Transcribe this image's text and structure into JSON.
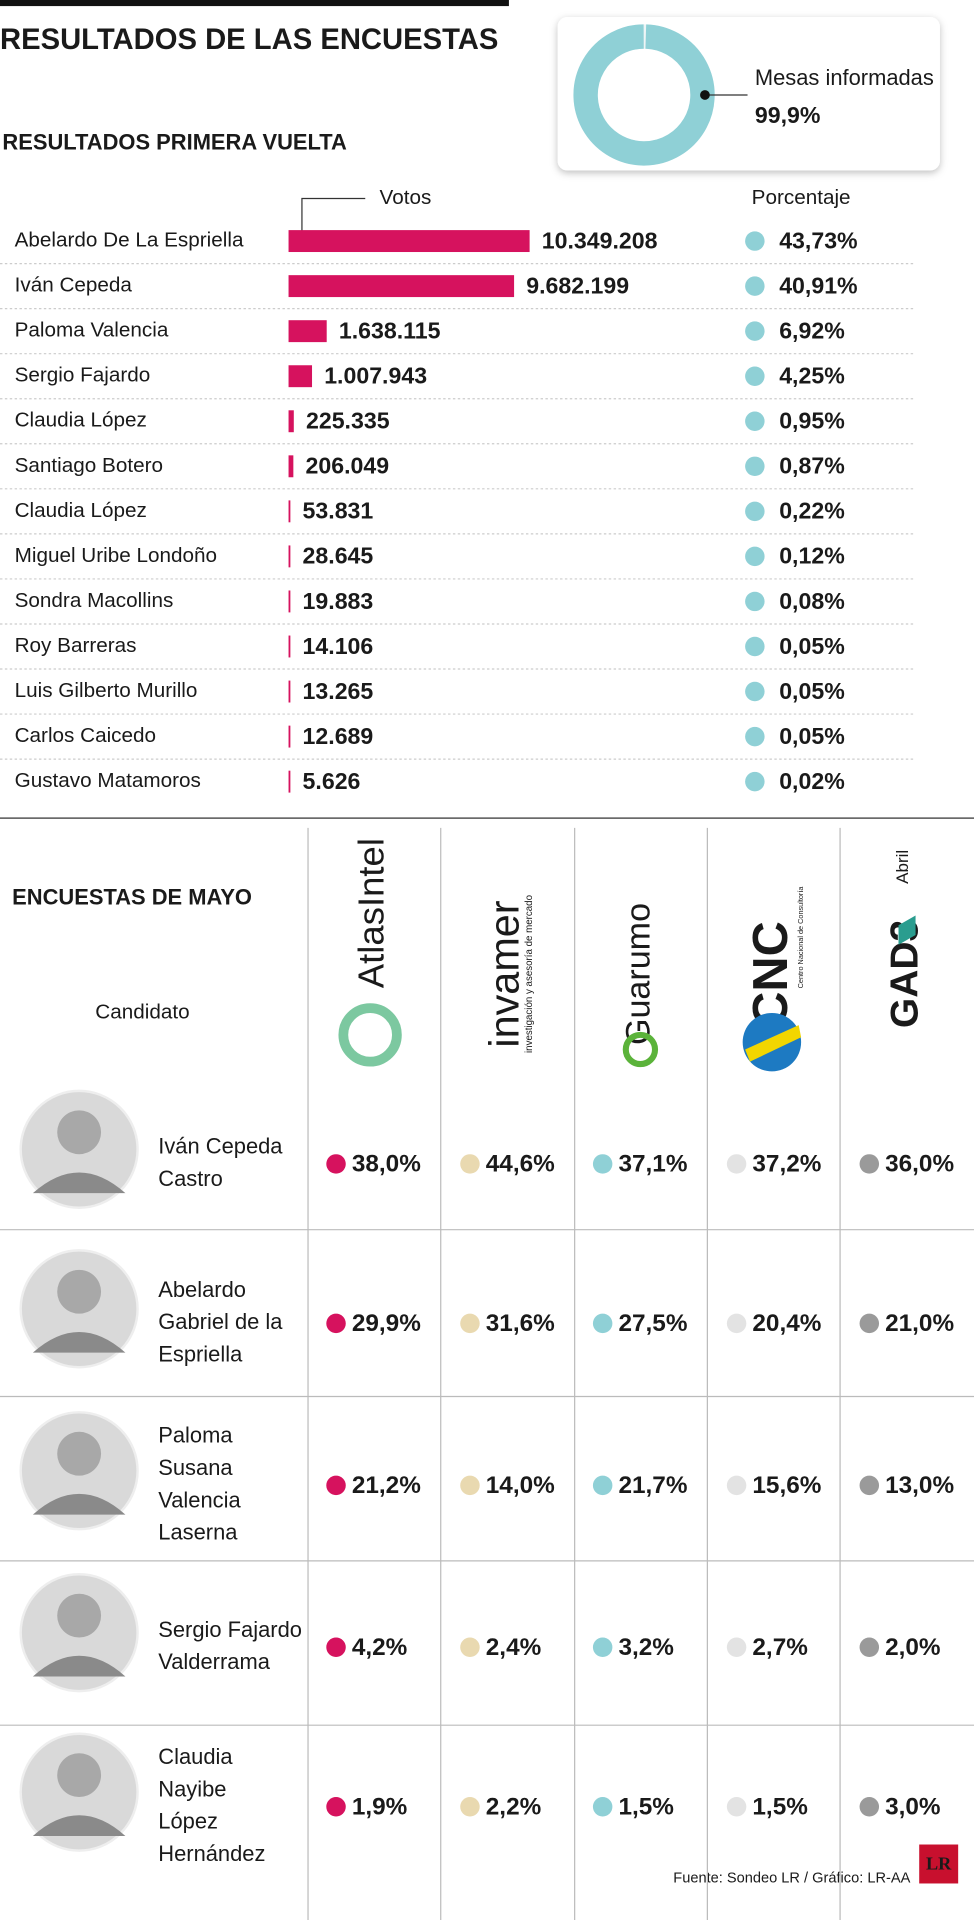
{
  "title": "RESULTADOS DE LAS ENCUESTAS",
  "donut": {
    "type": "pie",
    "categories": [
      "Mesas informadas"
    ],
    "values": [
      99.9
    ],
    "value_labels": [
      "99,9%"
    ],
    "color": "#8fd0d6"
  },
  "chart_data": {
    "type": "bar",
    "title": "RESULTADOS PRIMERA VUELTA",
    "value_axis_label": "Votos",
    "percent_header": "Porcentaje",
    "color": "#d6125e",
    "categories": [
      "Abelardo De La Espriella",
      "Iván Cepeda",
      "Paloma Valencia",
      "Sergio Fajardo",
      "Claudia López",
      "Santiago Botero",
      "Claudia López",
      "Miguel Uribe Londoño",
      "Sondra Macollins",
      "Roy Barreras",
      "Luis Gilberto Murillo",
      "Carlos Caicedo",
      "Gustavo Matamoros"
    ],
    "values": [
      10349208,
      9682199,
      1638115,
      1007943,
      225335,
      206049,
      53831,
      28645,
      19883,
      14106,
      13265,
      12689,
      5626
    ],
    "value_labels": [
      "10.349.208",
      "9.682.199",
      "1.638.115",
      "1.007.943",
      "225.335",
      "206.049",
      "53.831",
      "28.645",
      "19.883",
      "14.106",
      "13.265",
      "12.689",
      "5.626"
    ],
    "percentages": [
      "43,73%",
      "40,91%",
      "6,92%",
      "4,25%",
      "0,95%",
      "0,87%",
      "0,22%",
      "0,12%",
      "0,08%",
      "0,05%",
      "0,05%",
      "0,05%",
      "0,02%"
    ],
    "percent_color": "#8fd0d6"
  },
  "polls": {
    "title": "ENCUESTAS DE MAYO",
    "candidate_header": "Candidato",
    "note": "Abril",
    "pollsters": [
      {
        "name": "AtlasIntel",
        "color": "#d6125e"
      },
      {
        "name": "invamer",
        "subtitle": "investigación y asesoría de mercado",
        "color": "#e9d9b0"
      },
      {
        "name": "Guarumo",
        "color": "#8fd0d6"
      },
      {
        "name": "CNC",
        "subtitle": "Centro Nacional de Consultoría",
        "color": "#e3e3e3"
      },
      {
        "name": "GAD3",
        "color": "#9a9a9a"
      }
    ],
    "rows": [
      {
        "name": [
          "Iván Cepeda",
          "Castro"
        ],
        "values": [
          "38,0%",
          "44,6%",
          "37,1%",
          "37,2%",
          "36,0%"
        ]
      },
      {
        "name": [
          "Abelardo",
          "Gabriel de la",
          "Espriella"
        ],
        "values": [
          "29,9%",
          "31,6%",
          "27,5%",
          "20,4%",
          "21,0%"
        ]
      },
      {
        "name": [
          "Paloma",
          "Susana",
          "Valencia",
          "Laserna"
        ],
        "values": [
          "21,2%",
          "14,0%",
          "21,7%",
          "15,6%",
          "13,0%"
        ]
      },
      {
        "name": [
          "Sergio Fajardo",
          "Valderrama"
        ],
        "values": [
          "4,2%",
          "2,4%",
          "3,2%",
          "2,7%",
          "2,0%"
        ]
      },
      {
        "name": [
          "Claudia",
          "Nayibe",
          "López",
          "Hernández"
        ],
        "values": [
          "1,9%",
          "2,2%",
          "1,5%",
          "1,5%",
          "3,0%"
        ]
      }
    ]
  },
  "footer": "Fuente: Sondeo LR / Gráfico: LR-AA",
  "logo": "LR"
}
